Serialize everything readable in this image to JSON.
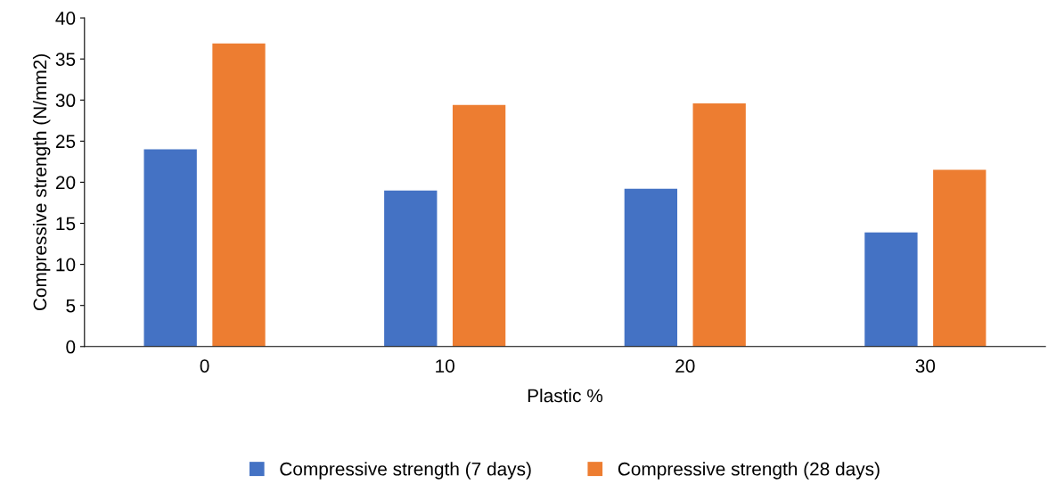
{
  "chart_data": {
    "type": "bar",
    "xlabel": "Plastic %",
    "ylabel": "Compressive strength (N/mm2)",
    "categories": [
      "0",
      "10",
      "20",
      "30"
    ],
    "series": [
      {
        "name": "Compressive strength (7 days)",
        "color": "#4472c4",
        "values": [
          24.0,
          19.0,
          19.2,
          13.9
        ]
      },
      {
        "name": "Compressive strength (28 days)",
        "color": "#ed7d31",
        "values": [
          36.9,
          29.4,
          29.6,
          21.5
        ]
      }
    ],
    "ylim": [
      0,
      40
    ],
    "yticks": [
      0,
      5,
      10,
      15,
      20,
      25,
      30,
      35,
      40
    ],
    "grid": false,
    "legend": "bottom"
  }
}
